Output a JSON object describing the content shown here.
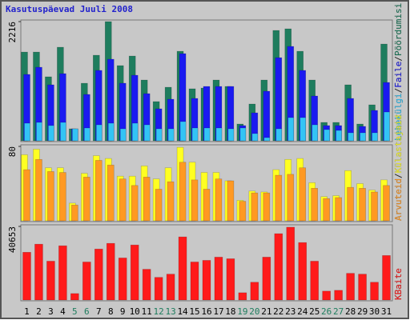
{
  "title": "Kasutuspäevad Juuli 2008",
  "legend_separator": "/",
  "chart_data": [
    {
      "type": "bar",
      "ylim": [
        0,
        2216
      ],
      "yticks": [
        2216
      ],
      "series": [
        {
          "name": "Pöördumisi",
          "color": "#1e7d5e",
          "values": [
            1650,
            1650,
            1190,
            1740,
            223,
            1070,
            1591,
            2216,
            1398,
            1576,
            1130,
            729,
            996,
            1665,
            967,
            981,
            1130,
            1011,
            312,
            684,
            1130,
            2052,
            2082,
            1665,
            1130,
            342,
            342,
            1041,
            312,
            669,
            1799
          ]
        },
        {
          "name": "Faile",
          "color": "#1a1af0",
          "values": [
            1234,
            1368,
            1041,
            1249,
            223,
            862,
            1309,
            1517,
            1071,
            1219,
            877,
            595,
            773,
            1621,
            788,
            1011,
            1011,
            1011,
            283,
            520,
            922,
            1546,
            1755,
            1309,
            833,
            283,
            283,
            788,
            268,
            565,
            1085
          ]
        },
        {
          "name": "Lehekülgi",
          "color": "#33c4f5",
          "values": [
            327,
            342,
            283,
            342,
            223,
            238,
            297,
            327,
            223,
            327,
            297,
            223,
            223,
            357,
            238,
            238,
            238,
            223,
            238,
            134,
            59,
            223,
            431,
            431,
            297,
            208,
            193,
            149,
            149,
            149,
            535
          ]
        }
      ]
    },
    {
      "type": "bar",
      "ylim": [
        0,
        80
      ],
      "yticks": [
        80
      ],
      "series": [
        {
          "name": "Külastajaid",
          "color": "#ffff22",
          "values": [
            71,
            77,
            57,
            57,
            19,
            51,
            70,
            67,
            48,
            48,
            59,
            45,
            57,
            79,
            63,
            52,
            52,
            43,
            22,
            32,
            31,
            55,
            66,
            67,
            41,
            26,
            27,
            54,
            40,
            33,
            44
          ]
        },
        {
          "name": "Arvuteid",
          "color": "#ff9922",
          "values": [
            55,
            66,
            53,
            52,
            17,
            47,
            65,
            60,
            45,
            38,
            47,
            34,
            42,
            63,
            44,
            34,
            45,
            43,
            21,
            30,
            30,
            49,
            50,
            57,
            35,
            24,
            25,
            36,
            35,
            31,
            38
          ]
        }
      ]
    },
    {
      "type": "bar",
      "ylim": [
        0,
        40653
      ],
      "yticks": [
        40653
      ],
      "categories": [
        "1",
        "2",
        "3",
        "4",
        "5",
        "6",
        "7",
        "8",
        "9",
        "10",
        "11",
        "12",
        "13",
        "14",
        "15",
        "16",
        "17",
        "18",
        "19",
        "20",
        "21",
        "22",
        "23",
        "24",
        "25",
        "26",
        "27",
        "28",
        "29",
        "30",
        "31"
      ],
      "category_colors": [
        "#000000",
        "#000000",
        "#000000",
        "#000000",
        "#1e7d5e",
        "#1e7d5e",
        "#000000",
        "#000000",
        "#000000",
        "#000000",
        "#000000",
        "#1e7d5e",
        "#1e7d5e",
        "#000000",
        "#000000",
        "#000000",
        "#000000",
        "#000000",
        "#1e7d5e",
        "#1e7d5e",
        "#000000",
        "#000000",
        "#000000",
        "#000000",
        "#000000",
        "#1e7d5e",
        "#1e7d5e",
        "#000000",
        "#000000",
        "#000000",
        "#000000"
      ],
      "series": [
        {
          "name": "KBaite",
          "color": "#ff1a1a",
          "values": [
            26380,
            30850,
            21460,
            29960,
            3576,
            21010,
            28170,
            31300,
            23240,
            30400,
            16990,
            12520,
            14300,
            34870,
            21010,
            21900,
            23690,
            22800,
            4023,
            9834,
            23690,
            36650,
            40230,
            31740,
            21460,
            4917,
            5364,
            14750,
            14300,
            9834,
            24590
          ]
        }
      ]
    }
  ]
}
